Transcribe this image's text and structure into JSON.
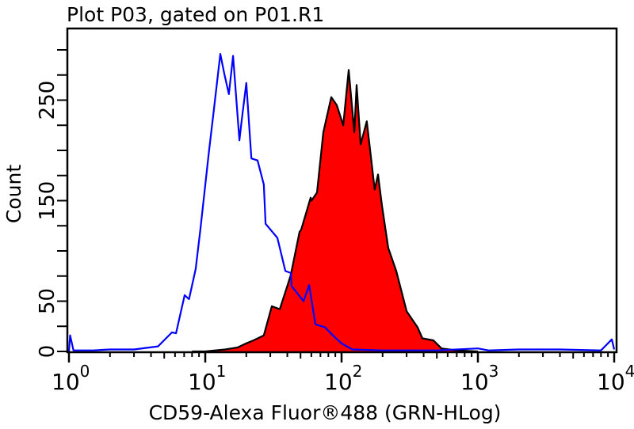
{
  "chart_data": {
    "type": "area",
    "title": "Plot P03, gated on P01.R1",
    "xlabel": "CD59-Alexa Fluor®488 (GRN-HLog)",
    "ylabel": "Count",
    "xscale": "log",
    "xlim": [
      1,
      10000
    ],
    "ylim": [
      0,
      320
    ],
    "grid": false,
    "x_ticks": [
      {
        "base": "10",
        "exp": "0",
        "value": 1
      },
      {
        "base": "10",
        "exp": "1",
        "value": 10
      },
      {
        "base": "10",
        "exp": "2",
        "value": 100
      },
      {
        "base": "10",
        "exp": "3",
        "value": 1000
      },
      {
        "base": "10",
        "exp": "4",
        "value": 10000
      }
    ],
    "y_ticks": [
      {
        "label": "0",
        "value": 0
      },
      {
        "label": "50",
        "value": 50
      },
      {
        "label": "150",
        "value": 150
      },
      {
        "label": "250",
        "value": 250
      }
    ],
    "y_minor_step": 25,
    "series": [
      {
        "style": "line",
        "color": "#0000ff",
        "points": [
          [
            1,
            0
          ],
          [
            1.02,
            16
          ],
          [
            1.08,
            1
          ],
          [
            1.5,
            1
          ],
          [
            2,
            2
          ],
          [
            3,
            2
          ],
          [
            4.5,
            5
          ],
          [
            5.7,
            19
          ],
          [
            6.1,
            18
          ],
          [
            7.06,
            56
          ],
          [
            7.6,
            52
          ],
          [
            8.5,
            82
          ],
          [
            9.2,
            121
          ],
          [
            10.6,
            197
          ],
          [
            11.6,
            242
          ],
          [
            12.9,
            296
          ],
          [
            13.8,
            276
          ],
          [
            14.9,
            256
          ],
          [
            16.0,
            294
          ],
          [
            17.8,
            210
          ],
          [
            18.5,
            230
          ],
          [
            20.0,
            267
          ],
          [
            21.8,
            192
          ],
          [
            24.2,
            190
          ],
          [
            26.9,
            166
          ],
          [
            27.7,
            127
          ],
          [
            33.8,
            113
          ],
          [
            38.7,
            80
          ],
          [
            42.4,
            78
          ],
          [
            43,
            65
          ],
          [
            52.6,
            50
          ],
          [
            57.8,
            66
          ],
          [
            64.3,
            27
          ],
          [
            75.5,
            24
          ],
          [
            86.3,
            16
          ],
          [
            100,
            8
          ],
          [
            120,
            2
          ],
          [
            200,
            1
          ],
          [
            500,
            1
          ],
          [
            1000,
            3
          ],
          [
            1200,
            1
          ],
          [
            2000,
            2
          ],
          [
            4000,
            2
          ],
          [
            8000,
            1
          ],
          [
            9600,
            12
          ],
          [
            10000,
            2
          ]
        ]
      },
      {
        "style": "filled",
        "color": "#ff0000",
        "outline": "#000000",
        "points": [
          [
            8,
            0
          ],
          [
            10,
            0
          ],
          [
            14,
            2
          ],
          [
            17.3,
            4
          ],
          [
            20,
            8
          ],
          [
            22.6,
            11
          ],
          [
            26.9,
            16
          ],
          [
            30.8,
            45
          ],
          [
            35.2,
            42
          ],
          [
            40.2,
            66
          ],
          [
            42.4,
            76
          ],
          [
            49.2,
            119
          ],
          [
            50.5,
            121
          ],
          [
            59.3,
            153
          ],
          [
            60.1,
            150
          ],
          [
            66,
            158
          ],
          [
            73.5,
            218
          ],
          [
            84,
            253
          ],
          [
            92.3,
            245
          ],
          [
            102.8,
            225
          ],
          [
            112.8,
            280
          ],
          [
            124,
            218
          ],
          [
            129,
            265
          ],
          [
            138,
            206
          ],
          [
            153,
            229
          ],
          [
            175,
            161
          ],
          [
            185,
            176
          ],
          [
            198,
            145
          ],
          [
            220,
            103
          ],
          [
            252,
            80
          ],
          [
            300,
            40
          ],
          [
            361,
            24
          ],
          [
            392,
            13
          ],
          [
            472,
            11
          ],
          [
            541,
            3
          ],
          [
            700,
            1
          ],
          [
            1000,
            0
          ]
        ]
      }
    ]
  }
}
